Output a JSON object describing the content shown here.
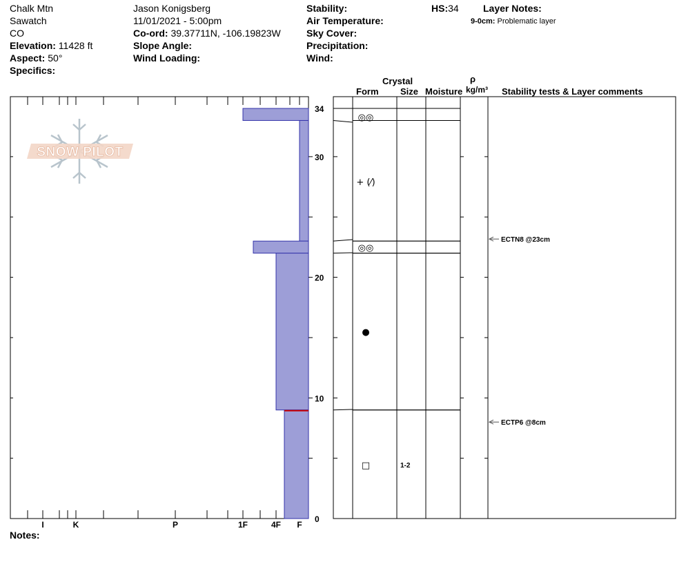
{
  "header": {
    "location": "Chalk Mtn",
    "range": "Sawatch",
    "state": "CO",
    "elevation_label": "Elevation:",
    "elevation_value": "11428 ft",
    "aspect_label": "Aspect:",
    "aspect_value": "50°",
    "specifics_label": "Specifics:",
    "observer": "Jason Konigsberg",
    "datetime": "11/01/2021 - 5:00pm",
    "coord_label": "Co-ord:",
    "coord_value": "39.37711N, -106.19823W",
    "slope_label": "Slope Angle:",
    "wind_loading_label": "Wind Loading:",
    "stability_label": "Stability:",
    "air_temp_label": "Air Temperature:",
    "sky_label": "Sky Cover:",
    "precip_label": "Precipitation:",
    "wind_label": "Wind:",
    "hs_label": "HS:",
    "hs_value": "34",
    "layer_notes_label": "Layer Notes:",
    "layer_note_depth": "9-0cm:",
    "layer_note_text": "Problematic layer"
  },
  "watermark": "SNOW PILOT",
  "notes_label": "Notes:",
  "columns": {
    "crystal": "Crystal",
    "form": "Form",
    "size": "Size",
    "moisture": "Moisture",
    "rho": "ρ",
    "density_unit": "kg/m³",
    "comments": "Stability tests & Layer comments"
  },
  "chart_data": {
    "type": "bar",
    "title": "",
    "ylabel": "",
    "xlabel": "",
    "ylim": [
      0,
      34
    ],
    "y_ticks": [
      0,
      10,
      20,
      30,
      34
    ],
    "hardness_scale": [
      "I",
      "K",
      "P",
      "1F",
      "4F",
      "F"
    ],
    "layers": [
      {
        "top": 34,
        "bottom": 33,
        "hardness": "1F",
        "form_symbol": "◎◎",
        "size": ""
      },
      {
        "top": 33,
        "bottom": 23,
        "hardness": "F",
        "form_symbol": "+ (⁄)",
        "size": ""
      },
      {
        "top": 23,
        "bottom": 22,
        "hardness": "1F+",
        "form_symbol": "◎◎",
        "size": ""
      },
      {
        "top": 22,
        "bottom": 9,
        "hardness": "4F",
        "form_symbol": "●",
        "size": ""
      },
      {
        "top": 9,
        "bottom": 0,
        "hardness": "4F-",
        "form_symbol": "□",
        "size": "1-2"
      }
    ],
    "critical_interface_depth": 9,
    "stability_tests": [
      {
        "depth": 23,
        "label": "ECTN8 @23cm"
      },
      {
        "depth": 8,
        "label": "ECTP6 @8cm"
      }
    ]
  }
}
